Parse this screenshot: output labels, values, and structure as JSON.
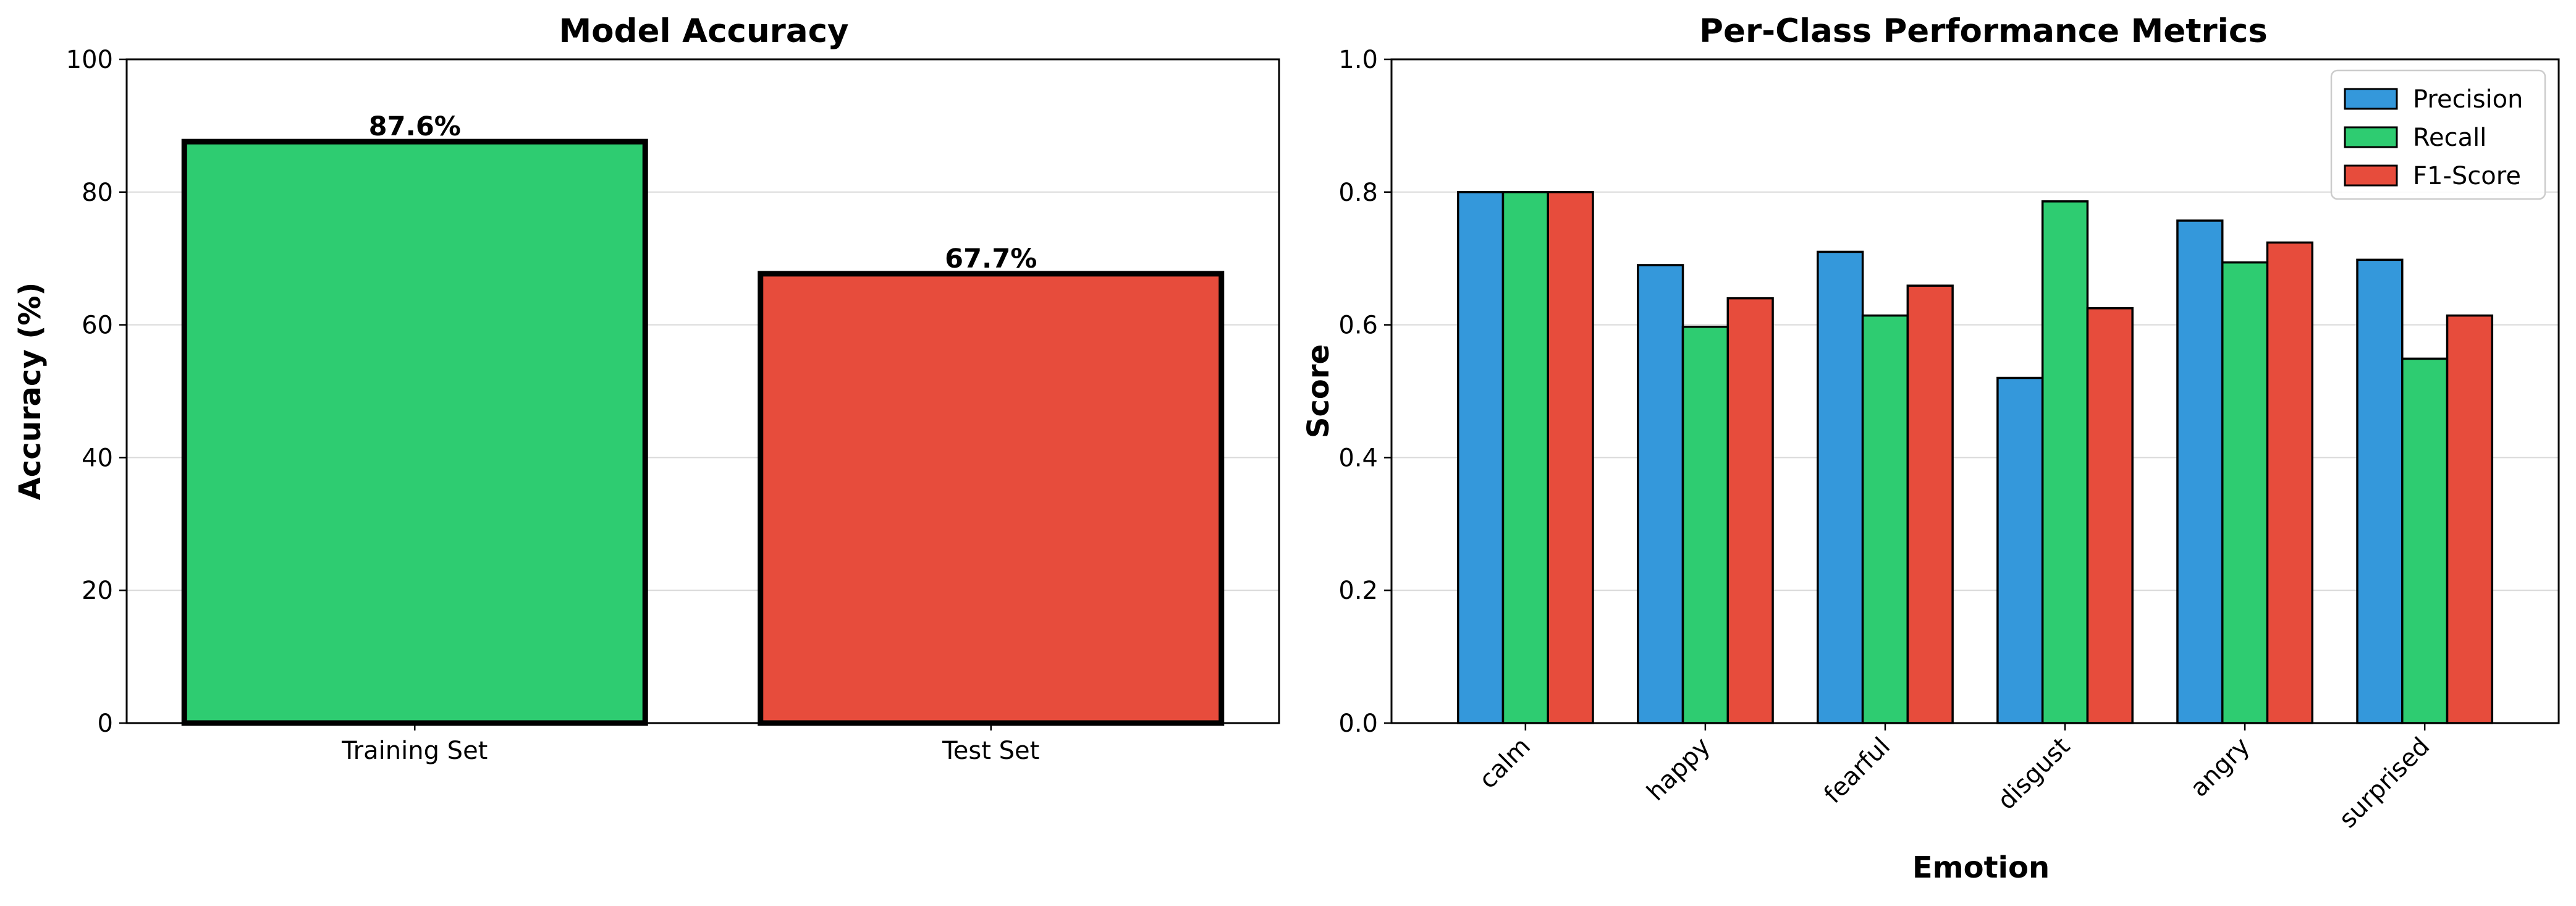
{
  "chart_data": [
    {
      "type": "bar",
      "title": "Model Accuracy",
      "xlabel": "",
      "ylabel": "Accuracy (%)",
      "categories": [
        "Training Set",
        "Test Set"
      ],
      "values": [
        87.6,
        67.7
      ],
      "value_labels": [
        "87.6%",
        "67.7%"
      ],
      "colors": [
        "#2ecc71",
        "#e74c3c"
      ],
      "ylim": [
        0,
        100
      ],
      "yticks": [
        "0",
        "20",
        "40",
        "60",
        "80",
        "100"
      ],
      "grid": "y",
      "legend": "none"
    },
    {
      "type": "bar",
      "title": "Per-Class Performance Metrics",
      "xlabel": "Emotion",
      "ylabel": "Score",
      "categories": [
        "calm",
        "happy",
        "fearful",
        "disgust",
        "angry",
        "surprised"
      ],
      "series": [
        {
          "name": "Precision",
          "color": "#3498db",
          "values": [
            0.8,
            0.69,
            0.71,
            0.52,
            0.757,
            0.698
          ]
        },
        {
          "name": "Recall",
          "color": "#2ecc71",
          "values": [
            0.8,
            0.597,
            0.614,
            0.786,
            0.694,
            0.549
          ]
        },
        {
          "name": "F1-Score",
          "color": "#e74c3c",
          "values": [
            0.8,
            0.64,
            0.659,
            0.625,
            0.724,
            0.614
          ]
        }
      ],
      "ylim": [
        0,
        1.0
      ],
      "yticks": [
        "0.0",
        "0.2",
        "0.4",
        "0.6",
        "0.8",
        "1.0"
      ],
      "grid": "y",
      "legend": "top-right"
    }
  ]
}
